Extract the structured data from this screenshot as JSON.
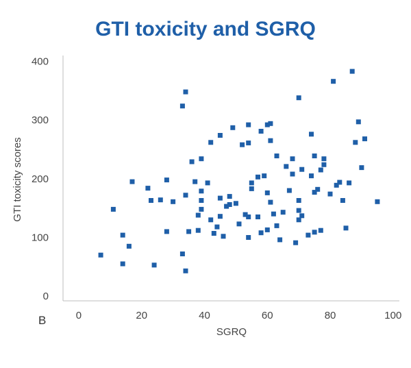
{
  "chart_data": {
    "type": "scatter",
    "title": "GTI toxicity and SGRQ",
    "xlabel": "SGRQ",
    "ylabel": "GTI toxicity scores",
    "panel_label": "B",
    "xlim": [
      -5,
      102
    ],
    "ylim": [
      -8,
      410
    ],
    "xticks": [
      0,
      20,
      40,
      60,
      80,
      100
    ],
    "yticks": [
      0,
      100,
      200,
      300,
      400
    ],
    "grid": false,
    "marker_color": "#1f5fa8",
    "title_color": "#1f5fa8",
    "points": [
      {
        "x": 7,
        "y": 70
      },
      {
        "x": 11,
        "y": 148
      },
      {
        "x": 14,
        "y": 104
      },
      {
        "x": 14,
        "y": 55
      },
      {
        "x": 16,
        "y": 85
      },
      {
        "x": 17,
        "y": 195
      },
      {
        "x": 22,
        "y": 184
      },
      {
        "x": 23,
        "y": 163
      },
      {
        "x": 24,
        "y": 53
      },
      {
        "x": 26,
        "y": 164
      },
      {
        "x": 28,
        "y": 198
      },
      {
        "x": 28,
        "y": 110
      },
      {
        "x": 30,
        "y": 161
      },
      {
        "x": 33,
        "y": 72
      },
      {
        "x": 33,
        "y": 324
      },
      {
        "x": 34,
        "y": 348
      },
      {
        "x": 34,
        "y": 172
      },
      {
        "x": 34,
        "y": 43
      },
      {
        "x": 35,
        "y": 110
      },
      {
        "x": 36,
        "y": 229
      },
      {
        "x": 37,
        "y": 195
      },
      {
        "x": 38,
        "y": 112
      },
      {
        "x": 38,
        "y": 138
      },
      {
        "x": 39,
        "y": 234
      },
      {
        "x": 39,
        "y": 179
      },
      {
        "x": 39,
        "y": 163
      },
      {
        "x": 39,
        "y": 148
      },
      {
        "x": 41,
        "y": 193
      },
      {
        "x": 42,
        "y": 262
      },
      {
        "x": 42,
        "y": 130
      },
      {
        "x": 43,
        "y": 107
      },
      {
        "x": 44,
        "y": 118
      },
      {
        "x": 45,
        "y": 136
      },
      {
        "x": 45,
        "y": 167
      },
      {
        "x": 45,
        "y": 274
      },
      {
        "x": 46,
        "y": 102
      },
      {
        "x": 47,
        "y": 153
      },
      {
        "x": 48,
        "y": 170
      },
      {
        "x": 48,
        "y": 156
      },
      {
        "x": 49,
        "y": 287
      },
      {
        "x": 50,
        "y": 158
      },
      {
        "x": 51,
        "y": 123
      },
      {
        "x": 52,
        "y": 258
      },
      {
        "x": 53,
        "y": 139
      },
      {
        "x": 54,
        "y": 292
      },
      {
        "x": 54,
        "y": 261
      },
      {
        "x": 54,
        "y": 135
      },
      {
        "x": 54,
        "y": 100
      },
      {
        "x": 55,
        "y": 193
      },
      {
        "x": 55,
        "y": 183
      },
      {
        "x": 57,
        "y": 135
      },
      {
        "x": 57,
        "y": 203
      },
      {
        "x": 58,
        "y": 108
      },
      {
        "x": 58,
        "y": 281
      },
      {
        "x": 59,
        "y": 205
      },
      {
        "x": 60,
        "y": 176
      },
      {
        "x": 60,
        "y": 113
      },
      {
        "x": 60,
        "y": 292
      },
      {
        "x": 61,
        "y": 294
      },
      {
        "x": 61,
        "y": 265
      },
      {
        "x": 61,
        "y": 160
      },
      {
        "x": 62,
        "y": 140
      },
      {
        "x": 63,
        "y": 120
      },
      {
        "x": 63,
        "y": 239
      },
      {
        "x": 64,
        "y": 96
      },
      {
        "x": 65,
        "y": 143
      },
      {
        "x": 66,
        "y": 221
      },
      {
        "x": 67,
        "y": 180
      },
      {
        "x": 68,
        "y": 208
      },
      {
        "x": 68,
        "y": 234
      },
      {
        "x": 69,
        "y": 91
      },
      {
        "x": 70,
        "y": 163
      },
      {
        "x": 70,
        "y": 130
      },
      {
        "x": 70,
        "y": 146
      },
      {
        "x": 70,
        "y": 338
      },
      {
        "x": 71,
        "y": 137
      },
      {
        "x": 71,
        "y": 216
      },
      {
        "x": 73,
        "y": 104
      },
      {
        "x": 74,
        "y": 276
      },
      {
        "x": 74,
        "y": 205
      },
      {
        "x": 75,
        "y": 239
      },
      {
        "x": 75,
        "y": 109
      },
      {
        "x": 75,
        "y": 177
      },
      {
        "x": 76,
        "y": 182
      },
      {
        "x": 77,
        "y": 112
      },
      {
        "x": 77,
        "y": 215
      },
      {
        "x": 78,
        "y": 234
      },
      {
        "x": 78,
        "y": 224
      },
      {
        "x": 80,
        "y": 174
      },
      {
        "x": 81,
        "y": 366
      },
      {
        "x": 82,
        "y": 189
      },
      {
        "x": 83,
        "y": 194
      },
      {
        "x": 84,
        "y": 163
      },
      {
        "x": 85,
        "y": 116
      },
      {
        "x": 86,
        "y": 193
      },
      {
        "x": 87,
        "y": 383
      },
      {
        "x": 88,
        "y": 262
      },
      {
        "x": 89,
        "y": 297
      },
      {
        "x": 90,
        "y": 219
      },
      {
        "x": 91,
        "y": 268
      },
      {
        "x": 95,
        "y": 161
      }
    ]
  }
}
